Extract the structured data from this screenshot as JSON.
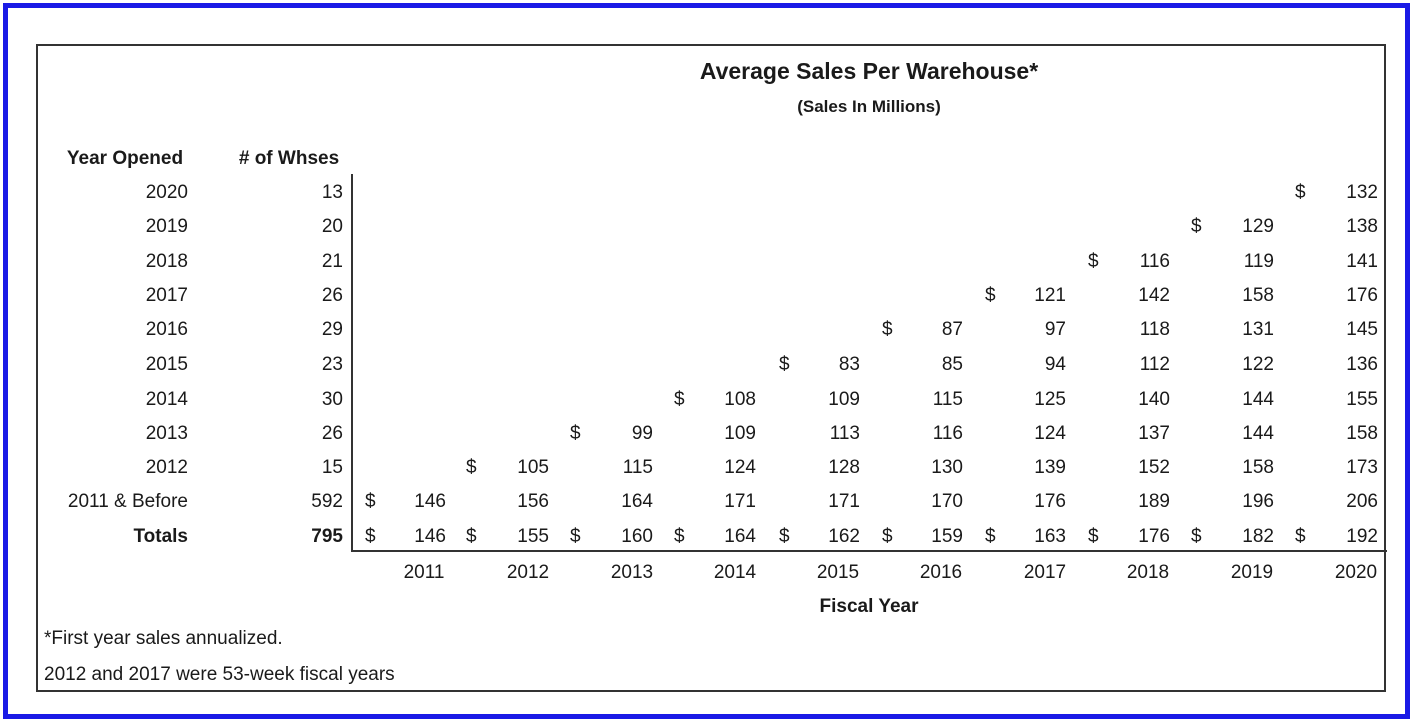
{
  "title": "Average Sales Per Warehouse*",
  "subtitle": "(Sales In Millions)",
  "headers": {
    "year_opened": "Year Opened",
    "num_whses": "# of Whses"
  },
  "currency_symbol": "$",
  "fiscal_years": [
    "2011",
    "2012",
    "2013",
    "2014",
    "2015",
    "2016",
    "2017",
    "2018",
    "2019",
    "2020"
  ],
  "rows": [
    {
      "label": "2020",
      "whses": "13",
      "values": [
        "",
        "",
        "",
        "",
        "",
        "",
        "",
        "",
        "",
        "132"
      ]
    },
    {
      "label": "2019",
      "whses": "20",
      "values": [
        "",
        "",
        "",
        "",
        "",
        "",
        "",
        "",
        "129",
        "138"
      ]
    },
    {
      "label": "2018",
      "whses": "21",
      "values": [
        "",
        "",
        "",
        "",
        "",
        "",
        "",
        "116",
        "119",
        "141"
      ]
    },
    {
      "label": "2017",
      "whses": "26",
      "values": [
        "",
        "",
        "",
        "",
        "",
        "",
        "121",
        "142",
        "158",
        "176"
      ]
    },
    {
      "label": "2016",
      "whses": "29",
      "values": [
        "",
        "",
        "",
        "",
        "",
        "87",
        "97",
        "118",
        "131",
        "145"
      ]
    },
    {
      "label": "2015",
      "whses": "23",
      "values": [
        "",
        "",
        "",
        "",
        "83",
        "85",
        "94",
        "112",
        "122",
        "136"
      ]
    },
    {
      "label": "2014",
      "whses": "30",
      "values": [
        "",
        "",
        "",
        "108",
        "109",
        "115",
        "125",
        "140",
        "144",
        "155"
      ]
    },
    {
      "label": "2013",
      "whses": "26",
      "values": [
        "",
        "",
        "99",
        "109",
        "113",
        "116",
        "124",
        "137",
        "144",
        "158"
      ]
    },
    {
      "label": "2012",
      "whses": "15",
      "values": [
        "",
        "105",
        "115",
        "124",
        "128",
        "130",
        "139",
        "152",
        "158",
        "173"
      ]
    },
    {
      "label": "2011 & Before",
      "whses": "592",
      "values": [
        "146",
        "156",
        "164",
        "171",
        "171",
        "170",
        "176",
        "189",
        "196",
        "206"
      ]
    }
  ],
  "totals": {
    "label": "Totals",
    "whses": "795",
    "values": [
      "146",
      "155",
      "160",
      "164",
      "162",
      "159",
      "163",
      "176",
      "182",
      "192"
    ]
  },
  "x_axis_label": "Fiscal Year",
  "footnotes": [
    "*First year sales annualized.",
    "2012 and 2017 were 53-week fiscal years"
  ]
}
